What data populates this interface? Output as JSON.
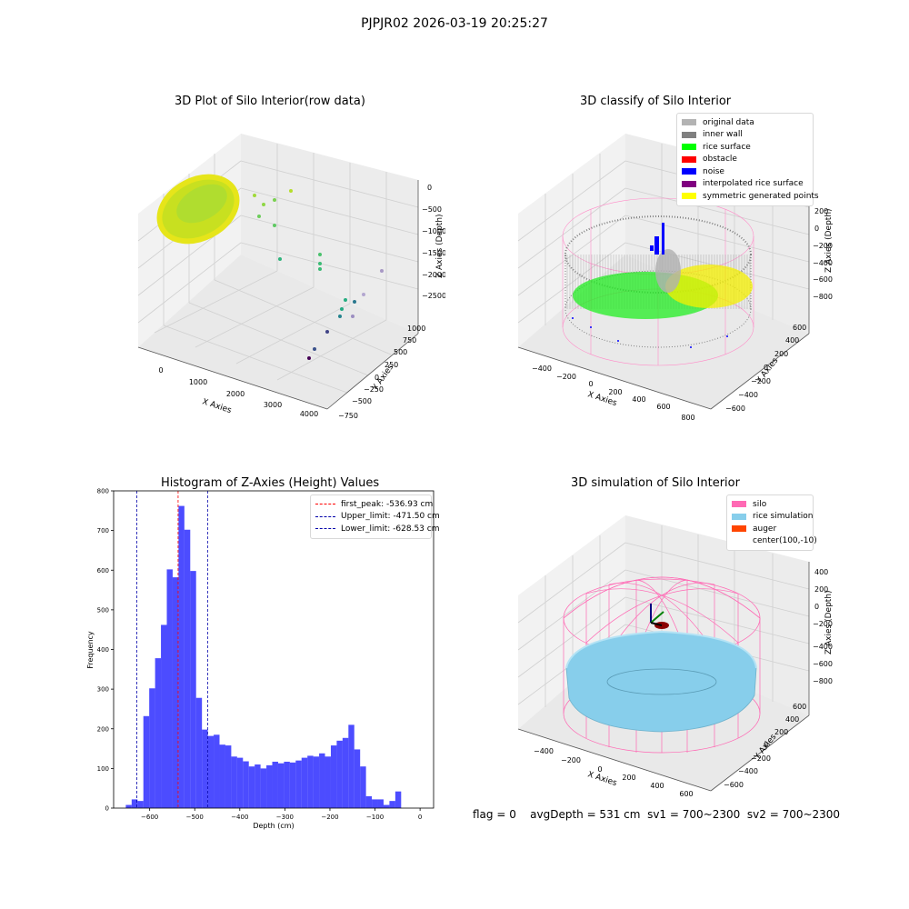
{
  "suptitle": "PJPJR02 2026-03-19 20:25:27",
  "status": {
    "flag": "flag = 0",
    "avgDepth": "avgDepth = 531 cm",
    "sv1": "sv1 = 700~2300",
    "sv2": "sv2 = 700~2300"
  },
  "chart_data": [
    {
      "type": "scatter",
      "title": "3D Plot of Silo Interior(row data)",
      "xlabel": "X Axies",
      "ylabel": "Y Axies",
      "zlabel": "Z Axies (Depth)",
      "x_ticks": [
        "0",
        "1000",
        "2000",
        "3000",
        "4000"
      ],
      "y_ticks": [
        "−750",
        "−500",
        "−250",
        "0",
        "250",
        "500",
        "750",
        "1000"
      ],
      "z_ticks": [
        "0",
        "−500",
        "−1000",
        "−1500",
        "−2000",
        "−2500"
      ],
      "colormap": "viridis"
    },
    {
      "type": "scatter",
      "title": "3D classify of Silo Interior",
      "xlabel": "X Axies",
      "ylabel": "Y Axies",
      "zlabel": "Z Axies (Depth)",
      "x_ticks": [
        "−400",
        "−200",
        "0",
        "200",
        "400",
        "600",
        "800"
      ],
      "y_ticks": [
        "−600",
        "−400",
        "−200",
        "0",
        "200",
        "400",
        "600"
      ],
      "z_ticks": [
        "200",
        "0",
        "−200",
        "−400",
        "−600",
        "−800"
      ],
      "legend": [
        {
          "label": "original data",
          "color": "#b3b3b3"
        },
        {
          "label": "inner wall",
          "color": "#808080"
        },
        {
          "label": "rice surface",
          "color": "#00ff00"
        },
        {
          "label": "obstacle",
          "color": "#ff0000"
        },
        {
          "label": "noise",
          "color": "#0000ff"
        },
        {
          "label": "interpolated rice surface",
          "color": "#800080"
        },
        {
          "label": "symmetric generated points",
          "color": "#ffff00"
        }
      ]
    },
    {
      "type": "bar",
      "title": "Histogram of Z-Axies (Height) Values",
      "xlabel": "Depth (cm)",
      "ylabel": "Frequency",
      "xlim": [
        -680,
        30
      ],
      "ylim": [
        0,
        800
      ],
      "x_ticks": [
        -600,
        -500,
        -400,
        -300,
        -200,
        -100,
        0
      ],
      "x_tick_labels": [
        "−600",
        "−500",
        "−400",
        "−300",
        "−200",
        "−100",
        "0"
      ],
      "y_ticks": [
        0,
        100,
        200,
        300,
        400,
        500,
        600,
        700,
        800
      ],
      "bin_start": -653,
      "bin_width": 13,
      "values": [
        8,
        22,
        18,
        232,
        302,
        378,
        462,
        602,
        582,
        762,
        702,
        598,
        278,
        198,
        182,
        185,
        160,
        158,
        130,
        127,
        118,
        105,
        110,
        100,
        108,
        117,
        113,
        117,
        115,
        120,
        127,
        132,
        130,
        138,
        130,
        158,
        170,
        177,
        210,
        148,
        105,
        30,
        22,
        22,
        8,
        18,
        42
      ],
      "bar_color": "#0000ff",
      "vlines": [
        {
          "label": "first_peak: -536.93 cm",
          "x": -536.93,
          "color": "#ff0000"
        },
        {
          "label": "Upper_limit: -471.50 cm",
          "x": -471.5,
          "color": "#0000aa"
        },
        {
          "label": "Lower_limit: -628.53 cm",
          "x": -628.53,
          "color": "#0000aa"
        }
      ],
      "legend_position": "top-right"
    },
    {
      "type": "scatter",
      "title": "3D simulation of Silo Interior",
      "xlabel": "X Axies",
      "ylabel": "Y Axies",
      "zlabel": "Z Axies (Depth)",
      "x_ticks": [
        "−400",
        "−200",
        "0",
        "200",
        "400",
        "600"
      ],
      "y_ticks": [
        "−600",
        "−400",
        "−200",
        "0",
        "200",
        "400",
        "600"
      ],
      "z_ticks": [
        "400",
        "200",
        "0",
        "−200",
        "−400",
        "−600",
        "−800"
      ],
      "legend": [
        {
          "label": "silo",
          "color": "#ff69b4"
        },
        {
          "label": "rice simulation",
          "color": "#87ceeb"
        },
        {
          "label": "auger",
          "color": "#ff4500"
        },
        {
          "label": "center(100,-10)",
          "color": ""
        }
      ]
    }
  ]
}
